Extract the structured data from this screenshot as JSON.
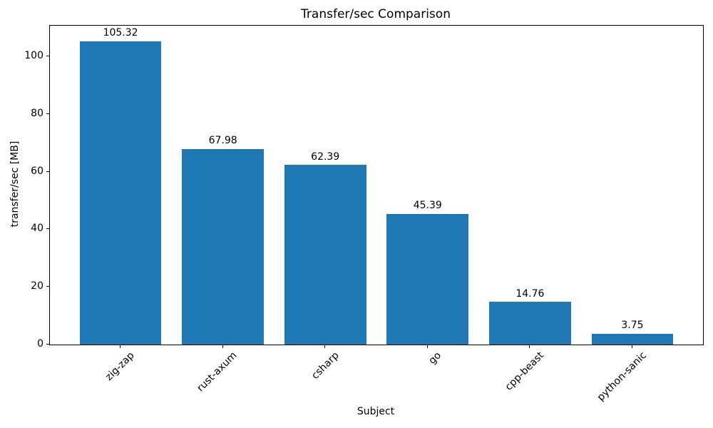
{
  "chart_data": {
    "type": "bar",
    "title": "Transfer/sec Comparison",
    "xlabel": "Subject",
    "ylabel": "transfer/sec [MB]",
    "categories": [
      "zig-zap",
      "rust-axum",
      "csharp",
      "go",
      "cpp-beast",
      "python-sanic"
    ],
    "values": [
      105.32,
      67.98,
      62.39,
      45.39,
      14.76,
      3.75
    ],
    "value_labels": [
      "105.32",
      "67.98",
      "62.39",
      "45.39",
      "14.76",
      "3.75"
    ],
    "yticks": [
      0,
      20,
      40,
      60,
      80,
      100
    ],
    "ytick_labels": [
      "0",
      "20",
      "40",
      "60",
      "80",
      "100"
    ],
    "ylim": [
      0,
      110.7
    ],
    "bar_color": "#1f77b4",
    "axis_color": "#000000",
    "background_color": "#ffffff",
    "grid": false,
    "legend": null,
    "xtick_label_rotation_deg": 45
  }
}
